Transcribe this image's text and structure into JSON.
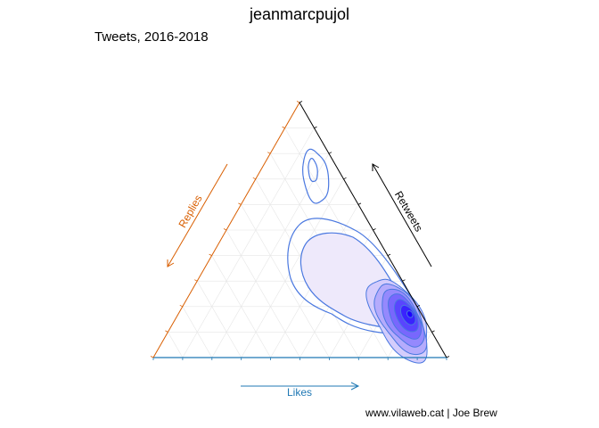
{
  "title": "jeanmarcpujol",
  "subtitle": "Tweets, 2016-2018",
  "caption": "www.vilaweb.cat | Joe Brew",
  "chart_data": {
    "type": "ternary-density",
    "axes": {
      "likes": {
        "label": "Likes",
        "color": "#1f78b4"
      },
      "retweets": {
        "label": "Retweets",
        "color": "#000000"
      },
      "replies": {
        "label": "Replies",
        "color": "#d95f02"
      }
    },
    "grid": true,
    "grid_step": 0.1,
    "density_peak": {
      "likes": 0.79,
      "retweets": 0.17,
      "replies": 0.04
    },
    "secondary_mode": {
      "likes": 0.49,
      "retweets": 0.15,
      "replies": 0.36
    },
    "contour_levels": 9,
    "fill_colors": {
      "low": "#f2eefb",
      "high": "#1a00ff"
    },
    "contour_color": "#4a78e0"
  }
}
